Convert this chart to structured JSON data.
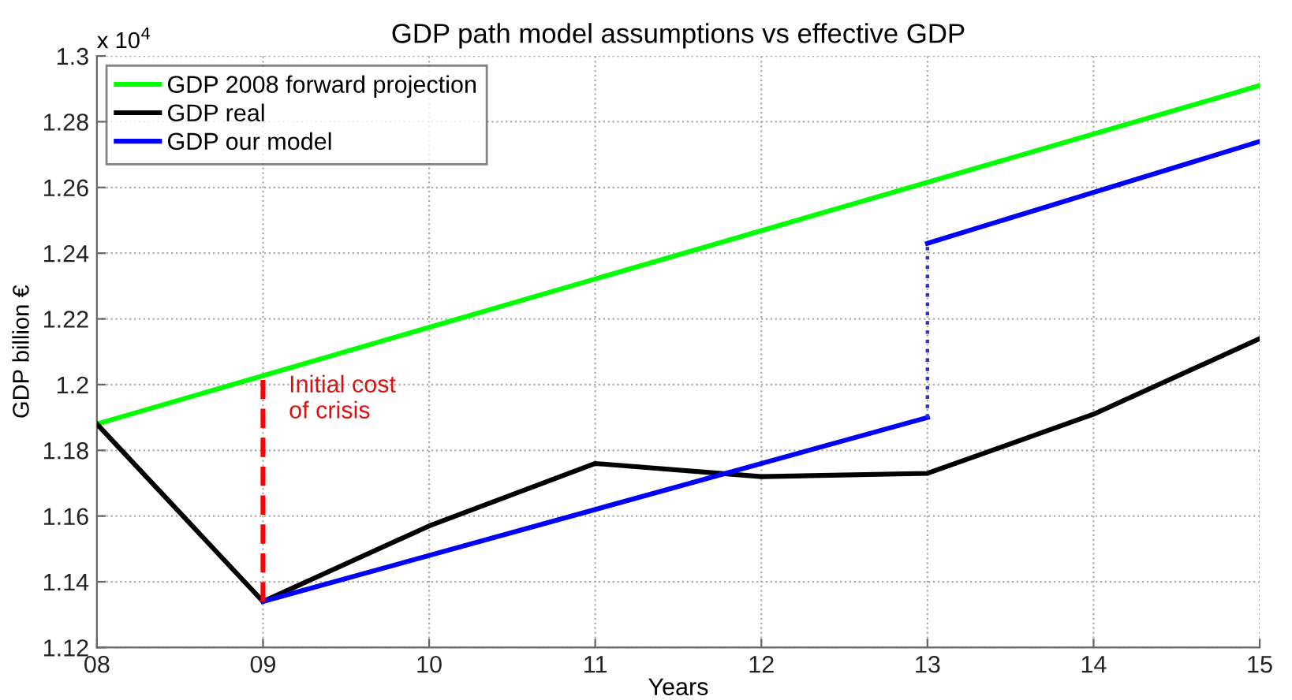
{
  "chart_data": {
    "type": "line",
    "title": "GDP path model assumptions vs effective GDP",
    "xlabel": "Years",
    "ylabel": "GDP billion €",
    "xlim": [
      8,
      15
    ],
    "xticks": [
      {
        "value": 8,
        "label": "08"
      },
      {
        "value": 9,
        "label": "09"
      },
      10,
      11,
      12,
      13,
      14,
      15
    ],
    "ylim": [
      1.12,
      1.3
    ],
    "yticks": [
      1.12,
      1.14,
      1.16,
      1.18,
      1.2,
      1.22,
      1.24,
      1.26,
      1.28,
      1.3
    ],
    "grid": true,
    "legend": "top left",
    "marker": "none",
    "series": [
      {
        "name": "GDP 2008 forward projection",
        "color": "#00ff00",
        "x": [
          8,
          15
        ],
        "values": [
          1.188,
          1.291
        ]
      },
      {
        "name": "GDP real",
        "color": "#000000",
        "x": [
          8,
          9,
          10,
          11,
          12,
          13,
          14,
          15
        ],
        "values": [
          1.188,
          1.134,
          1.157,
          1.176,
          1.172,
          1.173,
          1.191,
          1.214
        ]
      },
      {
        "name": "GDP our model",
        "color": "#0000ff",
        "x": [
          9,
          13,
          null,
          13,
          15
        ],
        "values": [
          1.134,
          1.19,
          null,
          1.243,
          1.274
        ]
      },
      {
        "color": "#3333bb",
        "x": [
          13,
          13
        ],
        "values": [
          1.19,
          1.243
        ],
        "line_style": "dotted"
      },
      {
        "color": "#ff0000",
        "x": [
          9,
          9
        ],
        "values": [
          1.134,
          1.202
        ],
        "line_style": "dashed"
      }
    ],
    "annotations": [
      "Initial cost\nof crisis",
      "x 10$^{4}$"
    ]
  }
}
